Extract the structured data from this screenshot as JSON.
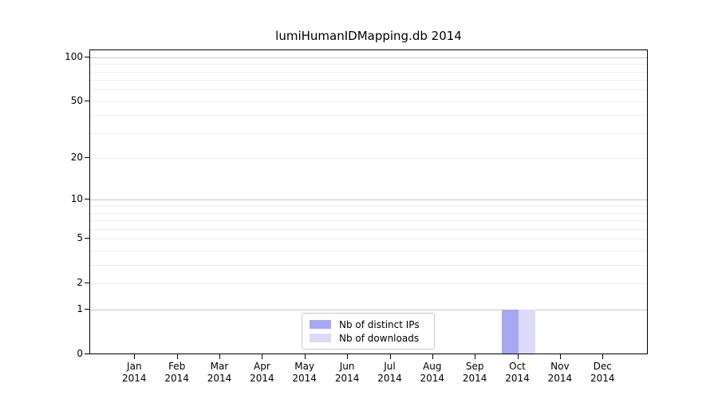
{
  "chart": {
    "title": "lumiHumanIDMapping.db 2014"
  },
  "chart_data": {
    "type": "bar",
    "title": "lumiHumanIDMapping.db 2014",
    "categories": [
      "Jan 2014",
      "Feb 2014",
      "Mar 2014",
      "Apr 2014",
      "May 2014",
      "Jun 2014",
      "Jul 2014",
      "Aug 2014",
      "Sep 2014",
      "Oct 2014",
      "Nov 2014",
      "Dec 2014"
    ],
    "months": [
      "Jan",
      "Feb",
      "Mar",
      "Apr",
      "May",
      "Jun",
      "Jul",
      "Aug",
      "Sep",
      "Oct",
      "Nov",
      "Dec"
    ],
    "year_label": "2014",
    "series": [
      {
        "name": "Nb of distinct IPs",
        "color": "#a8a8f2",
        "values": [
          0,
          0,
          0,
          0,
          0,
          0,
          0,
          0,
          0,
          1,
          0,
          0
        ]
      },
      {
        "name": "Nb of downloads",
        "color": "#dbdbf8",
        "values": [
          0,
          0,
          0,
          0,
          0,
          0,
          0,
          0,
          0,
          1,
          0,
          0
        ]
      }
    ],
    "yscale": "log1p",
    "ylim": [
      0,
      111
    ],
    "y_tick_values": [
      0,
      1,
      2,
      5,
      10,
      20,
      50,
      100
    ],
    "y_tick_labels": [
      "0",
      "1",
      "2",
      "5",
      "10",
      "20",
      "50",
      "100"
    ],
    "y_major_gridlines": [
      1,
      10,
      100
    ],
    "y_minor_gridlines": [
      2,
      3,
      4,
      5,
      6,
      7,
      8,
      9,
      20,
      30,
      40,
      50,
      60,
      70,
      80,
      90
    ],
    "grid": true,
    "legend_position": "lower center",
    "colors": {
      "major_grid": "#c8c8c8",
      "minor_grid": "#ededed",
      "spine": "#000000",
      "legend_border": "#c9c9c9",
      "text": "#000000",
      "background": "#ffffff"
    }
  }
}
